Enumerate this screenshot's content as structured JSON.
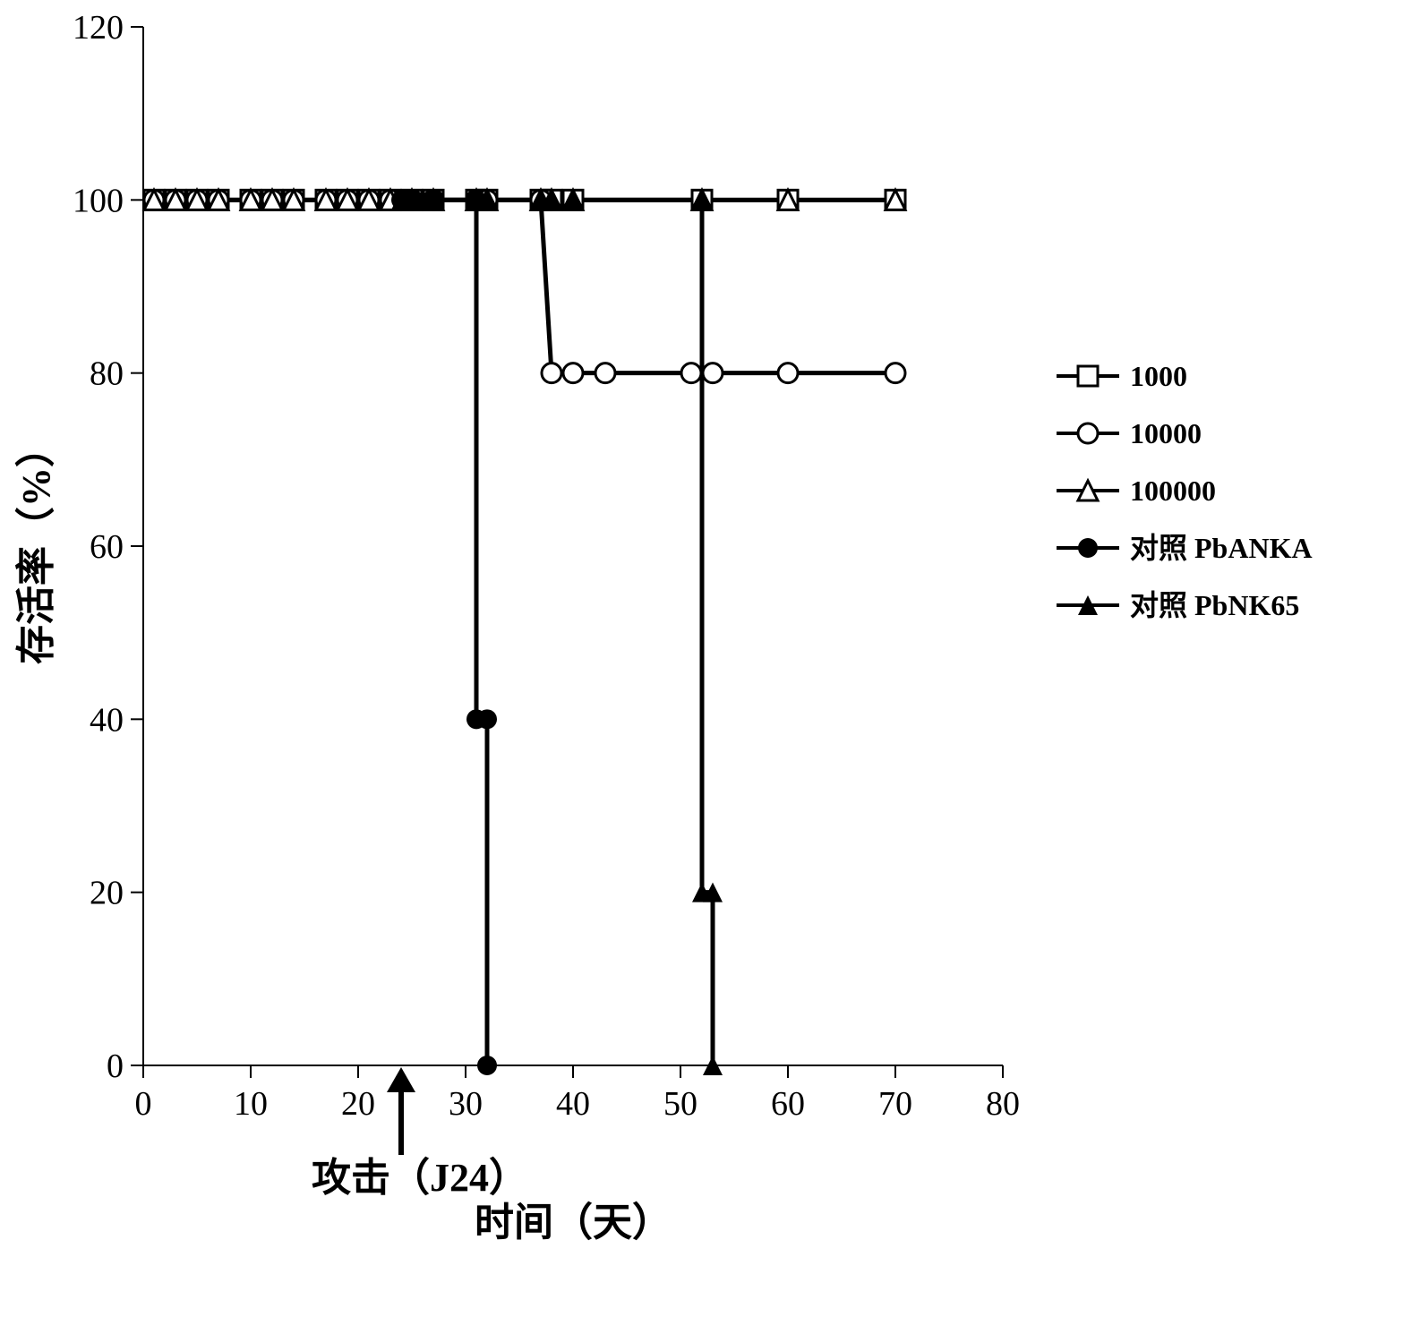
{
  "chart": {
    "type": "line-step",
    "background_color": "#ffffff",
    "axis_color": "#000000",
    "tick_color": "#000000",
    "tick_label_color": "#000000",
    "tick_label_fontsize": 38,
    "axis_title_fontsize": 44,
    "axis_line_width": 2,
    "data_line_width": 5,
    "marker_line_width": 3,
    "marker_size": 11,
    "x": {
      "min": 0,
      "max": 80,
      "ticks": [
        0,
        10,
        20,
        30,
        40,
        50,
        60,
        70,
        80
      ],
      "title": "时间（天）"
    },
    "y": {
      "min": 0,
      "max": 120,
      "ticks": [
        0,
        20,
        40,
        60,
        80,
        100,
        120
      ],
      "title": "存活率（%）"
    },
    "annotation": {
      "text": "攻击（J24）",
      "x": 24,
      "arrow": true
    },
    "legend": {
      "x_offset": 1180,
      "y_start": 420,
      "row_gap": 64,
      "items": [
        {
          "label": "1000",
          "marker": "square-open",
          "line": true
        },
        {
          "label": "10000",
          "marker": "circle-open",
          "line": true
        },
        {
          "label": "100000",
          "marker": "triangle-open",
          "line": true
        },
        {
          "label": "对照 PbANKA",
          "marker": "circle-filled",
          "line": true
        },
        {
          "label": "对照 PbNK65",
          "marker": "triangle-filled",
          "line": true
        }
      ]
    },
    "series": [
      {
        "name": "1000",
        "marker": "square-open",
        "color": "#000000",
        "points": [
          [
            1,
            100
          ],
          [
            3,
            100
          ],
          [
            5,
            100
          ],
          [
            7,
            100
          ],
          [
            10,
            100
          ],
          [
            12,
            100
          ],
          [
            14,
            100
          ],
          [
            17,
            100
          ],
          [
            19,
            100
          ],
          [
            21,
            100
          ],
          [
            23,
            100
          ],
          [
            25,
            100
          ],
          [
            27,
            100
          ],
          [
            31,
            100
          ],
          [
            32,
            100
          ],
          [
            37,
            100
          ],
          [
            38,
            100
          ],
          [
            40,
            100
          ],
          [
            52,
            100
          ],
          [
            60,
            100
          ],
          [
            70,
            100
          ]
        ]
      },
      {
        "name": "10000",
        "marker": "circle-open",
        "color": "#000000",
        "points": [
          [
            1,
            100
          ],
          [
            3,
            100
          ],
          [
            5,
            100
          ],
          [
            7,
            100
          ],
          [
            10,
            100
          ],
          [
            12,
            100
          ],
          [
            14,
            100
          ],
          [
            17,
            100
          ],
          [
            19,
            100
          ],
          [
            21,
            100
          ],
          [
            23,
            100
          ],
          [
            25,
            100
          ],
          [
            27,
            100
          ],
          [
            31,
            100
          ],
          [
            32,
            100
          ],
          [
            37,
            100
          ],
          [
            38,
            80
          ],
          [
            40,
            80
          ],
          [
            43,
            80
          ],
          [
            51,
            80
          ],
          [
            53,
            80
          ],
          [
            60,
            80
          ],
          [
            70,
            80
          ]
        ]
      },
      {
        "name": "100000",
        "marker": "triangle-open",
        "color": "#000000",
        "points": [
          [
            1,
            100
          ],
          [
            3,
            100
          ],
          [
            5,
            100
          ],
          [
            7,
            100
          ],
          [
            10,
            100
          ],
          [
            12,
            100
          ],
          [
            14,
            100
          ],
          [
            17,
            100
          ],
          [
            19,
            100
          ],
          [
            21,
            100
          ],
          [
            23,
            100
          ],
          [
            25,
            100
          ],
          [
            27,
            100
          ],
          [
            31,
            100
          ],
          [
            32,
            100
          ],
          [
            37,
            100
          ],
          [
            38,
            100
          ],
          [
            40,
            100
          ],
          [
            52,
            100
          ],
          [
            60,
            100
          ],
          [
            70,
            100
          ]
        ]
      },
      {
        "name": "对照 PbANKA",
        "marker": "circle-filled",
        "color": "#000000",
        "points": [
          [
            24,
            100
          ],
          [
            25,
            100
          ],
          [
            27,
            100
          ],
          [
            31,
            100
          ],
          [
            31,
            40
          ],
          [
            32,
            40
          ],
          [
            32,
            0
          ]
        ]
      },
      {
        "name": "对照 PbNK65",
        "marker": "triangle-filled",
        "color": "#000000",
        "points": [
          [
            24,
            100
          ],
          [
            25,
            100
          ],
          [
            27,
            100
          ],
          [
            31,
            100
          ],
          [
            32,
            100
          ],
          [
            37,
            100
          ],
          [
            38,
            100
          ],
          [
            40,
            100
          ],
          [
            52,
            100
          ],
          [
            52,
            20
          ],
          [
            53,
            20
          ],
          [
            53,
            0
          ]
        ]
      }
    ]
  }
}
